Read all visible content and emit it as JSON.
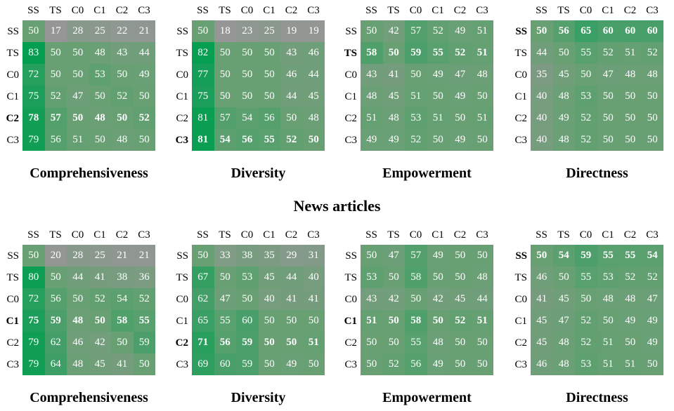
{
  "section_title": "News articles",
  "row_labels": [
    "SS",
    "TS",
    "C0",
    "C1",
    "C2",
    "C3"
  ],
  "col_labels": [
    "SS",
    "TS",
    "C0",
    "C1",
    "C2",
    "C3"
  ],
  "chart_data": [
    {
      "type": "heatmap",
      "title": "Comprehensiveness",
      "rows": [
        "SS",
        "TS",
        "C0",
        "C1",
        "C2",
        "C3"
      ],
      "cols": [
        "SS",
        "TS",
        "C0",
        "C1",
        "C2",
        "C3"
      ],
      "values": [
        [
          50,
          17,
          28,
          25,
          22,
          21
        ],
        [
          83,
          50,
          50,
          48,
          43,
          44
        ],
        [
          72,
          50,
          50,
          53,
          50,
          49
        ],
        [
          75,
          52,
          47,
          50,
          52,
          50
        ],
        [
          78,
          57,
          50,
          48,
          50,
          52
        ],
        [
          79,
          56,
          51,
          50,
          48,
          50
        ]
      ],
      "bold_row": "C2"
    },
    {
      "type": "heatmap",
      "title": "Diversity",
      "rows": [
        "SS",
        "TS",
        "C0",
        "C1",
        "C2",
        "C3"
      ],
      "cols": [
        "SS",
        "TS",
        "C0",
        "C1",
        "C2",
        "C3"
      ],
      "values": [
        [
          50,
          18,
          23,
          25,
          19,
          19
        ],
        [
          82,
          50,
          50,
          50,
          43,
          46
        ],
        [
          77,
          50,
          50,
          50,
          46,
          44
        ],
        [
          75,
          50,
          50,
          50,
          44,
          45
        ],
        [
          81,
          57,
          54,
          56,
          50,
          48
        ],
        [
          81,
          54,
          56,
          55,
          52,
          50
        ]
      ],
      "bold_row": "C3"
    },
    {
      "type": "heatmap",
      "title": "Empowerment",
      "rows": [
        "SS",
        "TS",
        "C0",
        "C1",
        "C2",
        "C3"
      ],
      "cols": [
        "SS",
        "TS",
        "C0",
        "C1",
        "C2",
        "C3"
      ],
      "values": [
        [
          50,
          42,
          57,
          52,
          49,
          51
        ],
        [
          58,
          50,
          59,
          55,
          52,
          51
        ],
        [
          43,
          41,
          50,
          49,
          47,
          48
        ],
        [
          48,
          45,
          51,
          50,
          49,
          50
        ],
        [
          51,
          48,
          53,
          51,
          50,
          51
        ],
        [
          49,
          49,
          52,
          50,
          49,
          50
        ]
      ],
      "bold_row": "TS"
    },
    {
      "type": "heatmap",
      "title": "Directness",
      "rows": [
        "SS",
        "TS",
        "C0",
        "C1",
        "C2",
        "C3"
      ],
      "cols": [
        "SS",
        "TS",
        "C0",
        "C1",
        "C2",
        "C3"
      ],
      "values": [
        [
          50,
          56,
          65,
          60,
          60,
          60
        ],
        [
          44,
          50,
          55,
          52,
          51,
          52
        ],
        [
          35,
          45,
          50,
          47,
          48,
          48
        ],
        [
          40,
          48,
          53,
          50,
          50,
          50
        ],
        [
          40,
          49,
          52,
          50,
          50,
          50
        ],
        [
          40,
          48,
          52,
          50,
          50,
          50
        ]
      ],
      "bold_row": "SS"
    },
    {
      "type": "heatmap",
      "title": "Comprehensiveness",
      "rows": [
        "SS",
        "TS",
        "C0",
        "C1",
        "C2",
        "C3"
      ],
      "cols": [
        "SS",
        "TS",
        "C0",
        "C1",
        "C2",
        "C3"
      ],
      "values": [
        [
          50,
          20,
          28,
          25,
          21,
          21
        ],
        [
          80,
          50,
          44,
          41,
          38,
          36
        ],
        [
          72,
          56,
          50,
          52,
          54,
          52
        ],
        [
          75,
          59,
          48,
          50,
          58,
          55
        ],
        [
          79,
          62,
          46,
          42,
          50,
          59
        ],
        [
          79,
          64,
          48,
          45,
          41,
          50
        ]
      ],
      "bold_row": "C1"
    },
    {
      "type": "heatmap",
      "title": "Diversity",
      "rows": [
        "SS",
        "TS",
        "C0",
        "C1",
        "C2",
        "C3"
      ],
      "cols": [
        "SS",
        "TS",
        "C0",
        "C1",
        "C2",
        "C3"
      ],
      "values": [
        [
          50,
          33,
          38,
          35,
          29,
          31
        ],
        [
          67,
          50,
          53,
          45,
          44,
          40
        ],
        [
          62,
          47,
          50,
          40,
          41,
          41
        ],
        [
          65,
          55,
          60,
          50,
          50,
          50
        ],
        [
          71,
          56,
          59,
          50,
          50,
          51
        ],
        [
          69,
          60,
          59,
          50,
          49,
          50
        ]
      ],
      "bold_row": "C2"
    },
    {
      "type": "heatmap",
      "title": "Empowerment",
      "rows": [
        "SS",
        "TS",
        "C0",
        "C1",
        "C2",
        "C3"
      ],
      "cols": [
        "SS",
        "TS",
        "C0",
        "C1",
        "C2",
        "C3"
      ],
      "values": [
        [
          50,
          47,
          57,
          49,
          50,
          50
        ],
        [
          53,
          50,
          58,
          50,
          50,
          48
        ],
        [
          43,
          42,
          50,
          42,
          45,
          44
        ],
        [
          51,
          50,
          58,
          50,
          52,
          51
        ],
        [
          50,
          50,
          55,
          48,
          50,
          50
        ],
        [
          50,
          52,
          56,
          49,
          50,
          50
        ]
      ],
      "bold_row": "C1"
    },
    {
      "type": "heatmap",
      "title": "Directness",
      "rows": [
        "SS",
        "TS",
        "C0",
        "C1",
        "C2",
        "C3"
      ],
      "cols": [
        "SS",
        "TS",
        "C0",
        "C1",
        "C2",
        "C3"
      ],
      "values": [
        [
          50,
          54,
          59,
          55,
          55,
          54
        ],
        [
          46,
          50,
          55,
          53,
          52,
          52
        ],
        [
          41,
          45,
          50,
          48,
          48,
          47
        ],
        [
          45,
          47,
          52,
          50,
          49,
          49
        ],
        [
          45,
          48,
          52,
          51,
          50,
          49
        ],
        [
          46,
          48,
          53,
          51,
          51,
          50
        ]
      ],
      "bold_row": "SS"
    }
  ]
}
